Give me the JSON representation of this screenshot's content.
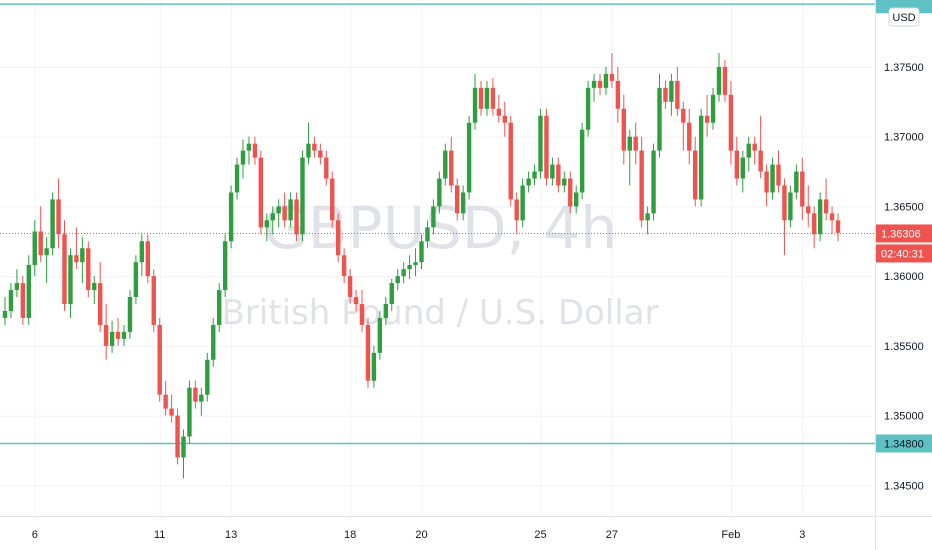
{
  "chart_data": {
    "type": "candlestick",
    "watermark": {
      "symbol": "GBPUSD, 4h",
      "description": "British Pound / U.S. Dollar"
    },
    "currency_button": "USD",
    "y_ticks": [
      "1.34500",
      "1.35000",
      "1.35500",
      "1.36000",
      "1.36500",
      "1.37000",
      "1.37500"
    ],
    "y_tick_values": [
      1.345,
      1.35,
      1.355,
      1.36,
      1.365,
      1.37,
      1.375
    ],
    "x_ticks": [
      "6",
      "11",
      "13",
      "18",
      "20",
      "25",
      "27",
      "Feb",
      "3"
    ],
    "x_tick_index": [
      5,
      26,
      38,
      58,
      70,
      90,
      102,
      122,
      134
    ],
    "ylim": [
      1.3428,
      1.3798
    ],
    "horizontal_lines": [
      1.3795,
      1.348
    ],
    "horizontal_line_labels": [
      "",
      "1.34800"
    ],
    "last_price": "1.36306",
    "countdown": "02:40:31",
    "colors": {
      "up": "#26a69a",
      "up_body": "#2e9e3e",
      "down": "#ef5350",
      "hline": "#5fc1c4",
      "price_tag": "#ef5350",
      "hline_tag": "#5fc1c4",
      "grid": "#f0f3fa"
    },
    "candles": [
      [
        1.357,
        1.3585,
        1.3565,
        1.3575
      ],
      [
        1.3575,
        1.3595,
        1.357,
        1.359
      ],
      [
        1.359,
        1.3605,
        1.3585,
        1.3595
      ],
      [
        1.3595,
        1.36,
        1.3565,
        1.357
      ],
      [
        1.357,
        1.3615,
        1.3565,
        1.3608
      ],
      [
        1.3608,
        1.364,
        1.36,
        1.3632
      ],
      [
        1.3632,
        1.365,
        1.361,
        1.3615
      ],
      [
        1.3615,
        1.3628,
        1.3595,
        1.362
      ],
      [
        1.362,
        1.366,
        1.3615,
        1.3655
      ],
      [
        1.3655,
        1.367,
        1.362,
        1.363
      ],
      [
        1.363,
        1.364,
        1.3575,
        1.358
      ],
      [
        1.358,
        1.362,
        1.357,
        1.3615
      ],
      [
        1.3615,
        1.3635,
        1.3605,
        1.361
      ],
      [
        1.361,
        1.3628,
        1.3595,
        1.362
      ],
      [
        1.362,
        1.3625,
        1.3585,
        1.359
      ],
      [
        1.359,
        1.36,
        1.358,
        1.3595
      ],
      [
        1.3595,
        1.361,
        1.356,
        1.3565
      ],
      [
        1.3565,
        1.358,
        1.354,
        1.355
      ],
      [
        1.355,
        1.3568,
        1.3545,
        1.356
      ],
      [
        1.356,
        1.357,
        1.355,
        1.3555
      ],
      [
        1.3555,
        1.3565,
        1.355,
        1.356
      ],
      [
        1.356,
        1.359,
        1.3555,
        1.3585
      ],
      [
        1.3585,
        1.3615,
        1.358,
        1.361
      ],
      [
        1.361,
        1.363,
        1.36,
        1.3625
      ],
      [
        1.3625,
        1.363,
        1.3595,
        1.36
      ],
      [
        1.36,
        1.3605,
        1.356,
        1.3565
      ],
      [
        1.3565,
        1.357,
        1.351,
        1.3515
      ],
      [
        1.3515,
        1.3525,
        1.35,
        1.3505
      ],
      [
        1.3505,
        1.3515,
        1.3495,
        1.35
      ],
      [
        1.35,
        1.3505,
        1.3465,
        1.347
      ],
      [
        1.347,
        1.349,
        1.3455,
        1.3485
      ],
      [
        1.3485,
        1.3525,
        1.348,
        1.352
      ],
      [
        1.352,
        1.3525,
        1.3505,
        1.351
      ],
      [
        1.351,
        1.352,
        1.35,
        1.3515
      ],
      [
        1.3515,
        1.3545,
        1.351,
        1.354
      ],
      [
        1.354,
        1.357,
        1.3535,
        1.3565
      ],
      [
        1.3565,
        1.3595,
        1.356,
        1.359
      ],
      [
        1.359,
        1.363,
        1.3585,
        1.3625
      ],
      [
        1.3625,
        1.3665,
        1.362,
        1.366
      ],
      [
        1.366,
        1.3685,
        1.3655,
        1.368
      ],
      [
        1.368,
        1.3698,
        1.367,
        1.369
      ],
      [
        1.369,
        1.37,
        1.368,
        1.3695
      ],
      [
        1.3695,
        1.37,
        1.368,
        1.3685
      ],
      [
        1.3685,
        1.369,
        1.363,
        1.3635
      ],
      [
        1.3635,
        1.3645,
        1.3625,
        1.364
      ],
      [
        1.364,
        1.365,
        1.363,
        1.3645
      ],
      [
        1.3645,
        1.3655,
        1.3635,
        1.365
      ],
      [
        1.365,
        1.366,
        1.3635,
        1.364
      ],
      [
        1.364,
        1.366,
        1.3635,
        1.3655
      ],
      [
        1.3655,
        1.366,
        1.3625,
        1.363
      ],
      [
        1.363,
        1.369,
        1.3625,
        1.3685
      ],
      [
        1.3685,
        1.371,
        1.368,
        1.3695
      ],
      [
        1.3695,
        1.37,
        1.3685,
        1.369
      ],
      [
        1.369,
        1.3695,
        1.368,
        1.3685
      ],
      [
        1.3685,
        1.369,
        1.3665,
        1.367
      ],
      [
        1.367,
        1.3675,
        1.3635,
        1.364
      ],
      [
        1.364,
        1.3645,
        1.361,
        1.3615
      ],
      [
        1.3615,
        1.362,
        1.3595,
        1.36
      ],
      [
        1.36,
        1.3605,
        1.358,
        1.3585
      ],
      [
        1.3585,
        1.359,
        1.3575,
        1.358
      ],
      [
        1.358,
        1.359,
        1.356,
        1.3565
      ],
      [
        1.3565,
        1.357,
        1.352,
        1.3525
      ],
      [
        1.3525,
        1.355,
        1.352,
        1.3545
      ],
      [
        1.3545,
        1.3575,
        1.354,
        1.357
      ],
      [
        1.357,
        1.3585,
        1.3565,
        1.358
      ],
      [
        1.358,
        1.3598,
        1.3575,
        1.3595
      ],
      [
        1.3595,
        1.3605,
        1.359,
        1.36
      ],
      [
        1.36,
        1.361,
        1.3595,
        1.3605
      ],
      [
        1.3605,
        1.3615,
        1.3598,
        1.3608
      ],
      [
        1.3608,
        1.362,
        1.36,
        1.361
      ],
      [
        1.361,
        1.363,
        1.3605,
        1.3625
      ],
      [
        1.3625,
        1.364,
        1.362,
        1.3635
      ],
      [
        1.3635,
        1.3655,
        1.363,
        1.365
      ],
      [
        1.365,
        1.3675,
        1.3645,
        1.367
      ],
      [
        1.367,
        1.3695,
        1.3665,
        1.369
      ],
      [
        1.369,
        1.37,
        1.366,
        1.3665
      ],
      [
        1.3665,
        1.367,
        1.364,
        1.3645
      ],
      [
        1.3645,
        1.3665,
        1.364,
        1.366
      ],
      [
        1.366,
        1.3715,
        1.3655,
        1.371
      ],
      [
        1.371,
        1.3745,
        1.3705,
        1.3735
      ],
      [
        1.3735,
        1.374,
        1.3715,
        1.372
      ],
      [
        1.372,
        1.374,
        1.3715,
        1.3735
      ],
      [
        1.3735,
        1.3742,
        1.3715,
        1.372
      ],
      [
        1.372,
        1.373,
        1.371,
        1.3715
      ],
      [
        1.3715,
        1.3725,
        1.37,
        1.371
      ],
      [
        1.371,
        1.3715,
        1.365,
        1.3655
      ],
      [
        1.3655,
        1.366,
        1.363,
        1.364
      ],
      [
        1.364,
        1.367,
        1.3635,
        1.3665
      ],
      [
        1.3665,
        1.3675,
        1.366,
        1.367
      ],
      [
        1.367,
        1.368,
        1.3665,
        1.3675
      ],
      [
        1.3675,
        1.372,
        1.367,
        1.3715
      ],
      [
        1.3715,
        1.372,
        1.3665,
        1.367
      ],
      [
        1.367,
        1.3685,
        1.3665,
        1.368
      ],
      [
        1.368,
        1.3685,
        1.366,
        1.3665
      ],
      [
        1.3665,
        1.3675,
        1.366,
        1.367
      ],
      [
        1.367,
        1.3675,
        1.3645,
        1.365
      ],
      [
        1.365,
        1.3665,
        1.3645,
        1.366
      ],
      [
        1.366,
        1.371,
        1.3655,
        1.3705
      ],
      [
        1.3705,
        1.374,
        1.37,
        1.3735
      ],
      [
        1.3735,
        1.3745,
        1.3725,
        1.374
      ],
      [
        1.374,
        1.3745,
        1.373,
        1.3735
      ],
      [
        1.3735,
        1.375,
        1.373,
        1.3745
      ],
      [
        1.3745,
        1.376,
        1.3735,
        1.374
      ],
      [
        1.374,
        1.375,
        1.371,
        1.372
      ],
      [
        1.372,
        1.373,
        1.368,
        1.369
      ],
      [
        1.369,
        1.3705,
        1.3665,
        1.37
      ],
      [
        1.37,
        1.371,
        1.368,
        1.369
      ],
      [
        1.369,
        1.37,
        1.3635,
        1.364
      ],
      [
        1.364,
        1.365,
        1.363,
        1.3645
      ],
      [
        1.3645,
        1.3695,
        1.364,
        1.369
      ],
      [
        1.369,
        1.3745,
        1.3685,
        1.3735
      ],
      [
        1.3735,
        1.374,
        1.372,
        1.3725
      ],
      [
        1.3725,
        1.3745,
        1.3715,
        1.374
      ],
      [
        1.374,
        1.375,
        1.3715,
        1.372
      ],
      [
        1.372,
        1.3725,
        1.369,
        1.371
      ],
      [
        1.371,
        1.372,
        1.368,
        1.369
      ],
      [
        1.369,
        1.37,
        1.365,
        1.3655
      ],
      [
        1.3655,
        1.372,
        1.365,
        1.3715
      ],
      [
        1.3715,
        1.373,
        1.37,
        1.371
      ],
      [
        1.371,
        1.3735,
        1.3705,
        1.373
      ],
      [
        1.373,
        1.376,
        1.3725,
        1.375
      ],
      [
        1.375,
        1.3755,
        1.3725,
        1.373
      ],
      [
        1.373,
        1.374,
        1.368,
        1.369
      ],
      [
        1.369,
        1.37,
        1.3665,
        1.367
      ],
      [
        1.367,
        1.369,
        1.366,
        1.3685
      ],
      [
        1.3685,
        1.37,
        1.3675,
        1.3695
      ],
      [
        1.3695,
        1.37,
        1.368,
        1.369
      ],
      [
        1.369,
        1.3715,
        1.367,
        1.3675
      ],
      [
        1.3675,
        1.368,
        1.365,
        1.366
      ],
      [
        1.366,
        1.3685,
        1.3655,
        1.368
      ],
      [
        1.368,
        1.369,
        1.366,
        1.3665
      ],
      [
        1.3665,
        1.367,
        1.3615,
        1.364
      ],
      [
        1.364,
        1.3665,
        1.3635,
        1.366
      ],
      [
        1.366,
        1.368,
        1.3655,
        1.3675
      ],
      [
        1.3675,
        1.3685,
        1.364,
        1.365
      ],
      [
        1.365,
        1.3665,
        1.3635,
        1.3645
      ],
      [
        1.3645,
        1.365,
        1.362,
        1.363
      ],
      [
        1.363,
        1.366,
        1.3625,
        1.3655
      ],
      [
        1.3655,
        1.367,
        1.364,
        1.3645
      ],
      [
        1.3645,
        1.365,
        1.363,
        1.364
      ],
      [
        1.364,
        1.3645,
        1.3625,
        1.3631
      ]
    ]
  }
}
